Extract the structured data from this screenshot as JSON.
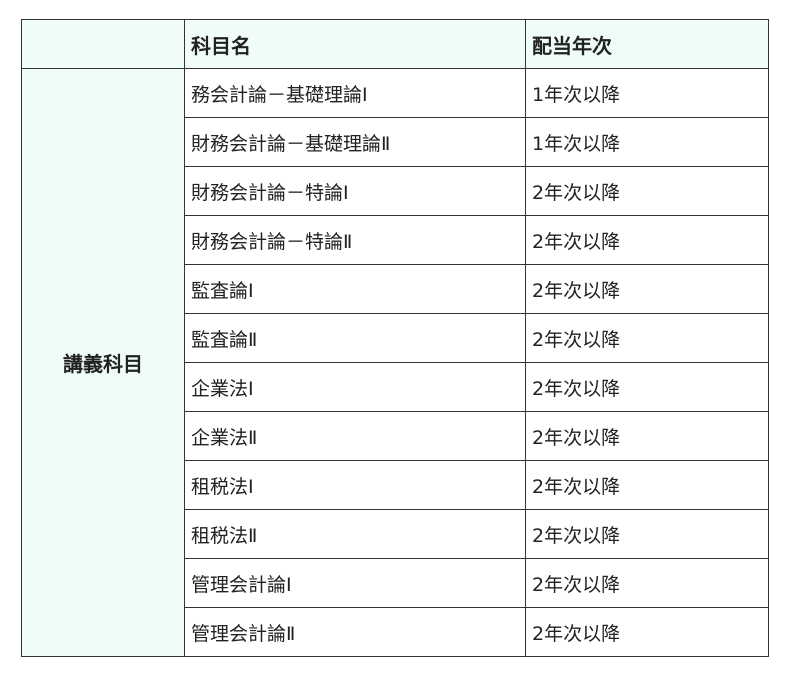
{
  "header": {
    "col0": "",
    "col1": "科目名",
    "col2": "配当年次"
  },
  "group_label": "講義科目",
  "rows": [
    {
      "name": "務会計論－基礎理論Ⅰ",
      "year": "1年次以降"
    },
    {
      "name": "財務会計論－基礎理論Ⅱ",
      "year": "1年次以降"
    },
    {
      "name": "財務会計論－特論Ⅰ",
      "year": "2年次以降"
    },
    {
      "name": "財務会計論－特論Ⅱ",
      "year": "2年次以降"
    },
    {
      "name": "監査論Ⅰ",
      "year": "2年次以降"
    },
    {
      "name": "監査論Ⅱ",
      "year": "2年次以降"
    },
    {
      "name": "企業法Ⅰ",
      "year": "2年次以降"
    },
    {
      "name": "企業法Ⅱ",
      "year": "2年次以降"
    },
    {
      "name": "租税法Ⅰ",
      "year": "2年次以降"
    },
    {
      "name": "租税法Ⅱ",
      "year": "2年次以降"
    },
    {
      "name": "管理会計論Ⅰ",
      "year": "2年次以降"
    },
    {
      "name": "管理会計論Ⅱ",
      "year": "2年次以降"
    }
  ],
  "colors": {
    "header_bg": "#effdf6",
    "border": "#333333"
  }
}
